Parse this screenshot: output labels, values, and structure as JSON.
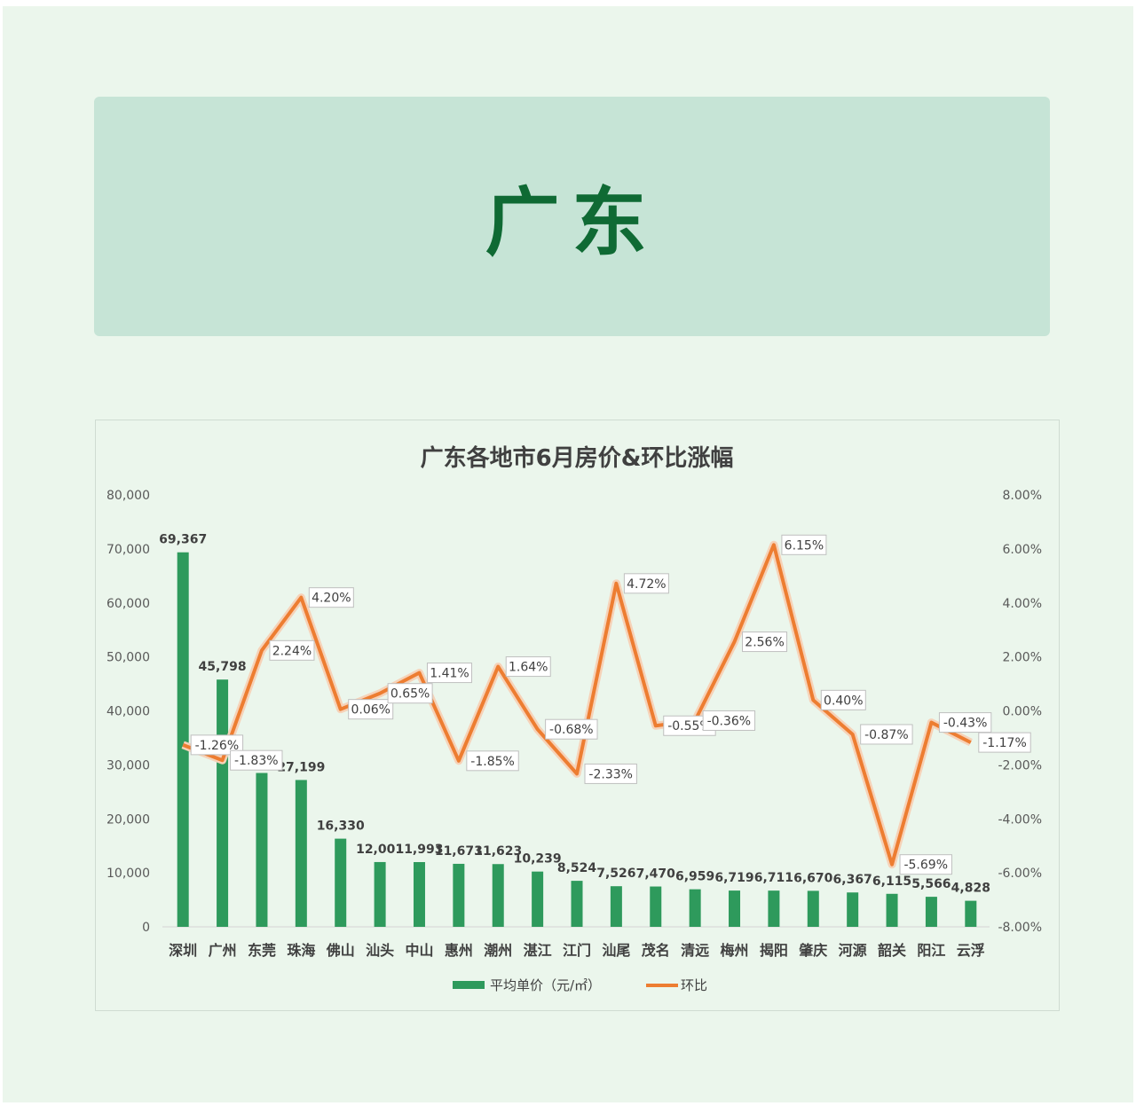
{
  "banner": {
    "title": "广东"
  },
  "chart_data": {
    "type": "bar",
    "title": "广东各地市6月房价&环比涨幅",
    "categories": [
      "深圳",
      "广州",
      "东莞",
      "珠海",
      "佛山",
      "汕头",
      "中山",
      "惠州",
      "潮州",
      "湛江",
      "江门",
      "汕尾",
      "茂名",
      "清远",
      "梅州",
      "揭阳",
      "肇庆",
      "河源",
      "韶关",
      "阳江",
      "云浮"
    ],
    "series": [
      {
        "name": "平均单价（元/㎡）",
        "type": "bar",
        "axis": "left",
        "color": "#2e9a5c",
        "values": [
          69367,
          45798,
          28500,
          27199,
          16330,
          12001,
          11993,
          11673,
          11623,
          10239,
          8524,
          7526,
          7470,
          6959,
          6719,
          6711,
          6670,
          6367,
          6115,
          5566,
          4828
        ],
        "labels": [
          "69,367",
          "45,798",
          "",
          "27,199",
          "16,330",
          "12,001",
          "11,993",
          "11,673",
          "11,623",
          "10,239",
          "8,524",
          "7,526",
          "7,470",
          "6,959",
          "6,719",
          "6,711",
          "6,670",
          "6,367",
          "6,115",
          "5,566",
          "4,828"
        ]
      },
      {
        "name": "环比",
        "type": "line",
        "axis": "right",
        "color": "#ed7d31",
        "values": [
          -1.26,
          -1.83,
          2.24,
          4.2,
          0.06,
          0.65,
          1.41,
          -1.85,
          1.64,
          -0.68,
          -2.33,
          4.72,
          -0.55,
          -0.36,
          2.56,
          6.15,
          0.4,
          -0.87,
          -5.69,
          -0.43,
          -1.17
        ],
        "labels": [
          "-1.26%",
          "-1.83%",
          "2.24%",
          "4.20%",
          "0.06%",
          "0.65%",
          "1.41%",
          "-1.85%",
          "1.64%",
          "-0.68%",
          "-2.33%",
          "4.72%",
          "-0.55%",
          "-0.36%",
          "2.56%",
          "6.15%",
          "0.40%",
          "-0.87%",
          "-5.69%",
          "-0.43%",
          "-1.17%"
        ]
      }
    ],
    "y_left": {
      "min": 0,
      "max": 80000,
      "ticks": [
        "0",
        "10,000",
        "20,000",
        "30,000",
        "40,000",
        "50,000",
        "60,000",
        "70,000",
        "80,000"
      ]
    },
    "y_right": {
      "min": -8,
      "max": 8,
      "ticks": [
        "-8.00%",
        "-6.00%",
        "-4.00%",
        "-2.00%",
        "0.00%",
        "2.00%",
        "4.00%",
        "6.00%",
        "8.00%"
      ]
    },
    "grid": false,
    "legend_position": "bottom"
  }
}
